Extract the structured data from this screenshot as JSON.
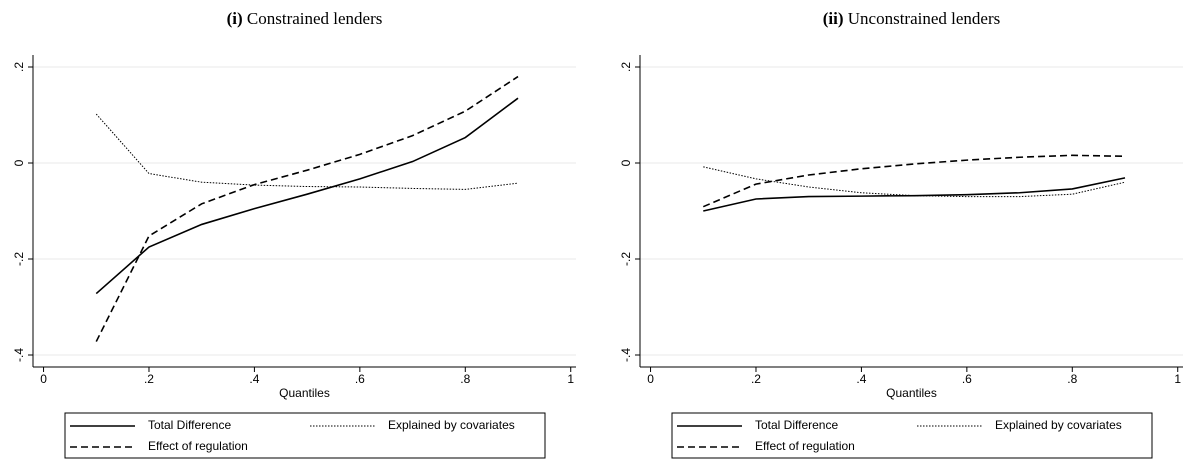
{
  "chart_data": [
    {
      "type": "line",
      "panel": "(i)",
      "title": "Constrained lenders",
      "x_label": "Quantiles",
      "x": [
        0.1,
        0.2,
        0.3,
        0.4,
        0.5,
        0.6,
        0.7,
        0.8,
        0.9
      ],
      "series": [
        {
          "name": "Total Difference",
          "color": "#000000",
          "dash": "solid",
          "values": [
            -0.272,
            -0.175,
            -0.128,
            -0.095,
            -0.065,
            -0.033,
            0.003,
            0.053,
            0.135
          ]
        },
        {
          "name": "Explained by covariates",
          "color": "#000000",
          "dash": "dotted",
          "values": [
            0.102,
            -0.022,
            -0.04,
            -0.046,
            -0.049,
            -0.05,
            -0.053,
            -0.055,
            -0.042
          ]
        },
        {
          "name": "Effect of regulation",
          "color": "#000000",
          "dash": "dashed",
          "values": [
            -0.372,
            -0.152,
            -0.085,
            -0.045,
            -0.015,
            0.018,
            0.057,
            0.108,
            0.18
          ]
        }
      ],
      "xlim": [
        -0.02,
        1.01
      ],
      "ylim": [
        -0.425,
        0.225
      ],
      "xticks": [
        0,
        {
          "value": 0.2,
          "label": ".2"
        },
        {
          "value": 0.4,
          "label": ".4"
        },
        {
          "value": 0.6,
          "label": ".6"
        },
        {
          "value": 0.8,
          "label": ".8"
        },
        1
      ],
      "yticks": [
        {
          "value": -0.4,
          "label": "-.4"
        },
        {
          "value": -0.2,
          "label": "-.2"
        },
        0,
        {
          "value": 0.2,
          "label": ".2"
        }
      ],
      "grid": true
    },
    {
      "type": "line",
      "panel": "(ii)",
      "title": "Unconstrained lenders",
      "x_label": "Quantiles",
      "x": [
        0.1,
        0.2,
        0.3,
        0.4,
        0.5,
        0.6,
        0.7,
        0.8,
        0.9
      ],
      "series": [
        {
          "name": "Total Difference",
          "color": "#000000",
          "dash": "solid",
          "values": [
            -0.1,
            -0.075,
            -0.07,
            -0.069,
            -0.068,
            -0.066,
            -0.062,
            -0.054,
            -0.031
          ]
        },
        {
          "name": "Explained by covariates",
          "color": "#000000",
          "dash": "dotted",
          "values": [
            -0.008,
            -0.033,
            -0.05,
            -0.062,
            -0.068,
            -0.07,
            -0.07,
            -0.065,
            -0.04
          ]
        },
        {
          "name": "Effect of regulation",
          "color": "#000000",
          "dash": "dashed",
          "values": [
            -0.091,
            -0.044,
            -0.025,
            -0.012,
            -0.002,
            0.006,
            0.012,
            0.016,
            0.014
          ]
        }
      ],
      "xlim": [
        -0.02,
        1.01
      ],
      "ylim": [
        -0.425,
        0.225
      ],
      "xticks": [
        0,
        {
          "value": 0.2,
          "label": ".2"
        },
        {
          "value": 0.4,
          "label": ".4"
        },
        {
          "value": 0.6,
          "label": ".6"
        },
        {
          "value": 0.8,
          "label": ".8"
        },
        1
      ],
      "yticks": [
        {
          "value": -0.4,
          "label": "-.4"
        },
        {
          "value": -0.2,
          "label": "-.2"
        },
        0,
        {
          "value": 0.2,
          "label": ".2"
        }
      ],
      "grid": true
    }
  ]
}
